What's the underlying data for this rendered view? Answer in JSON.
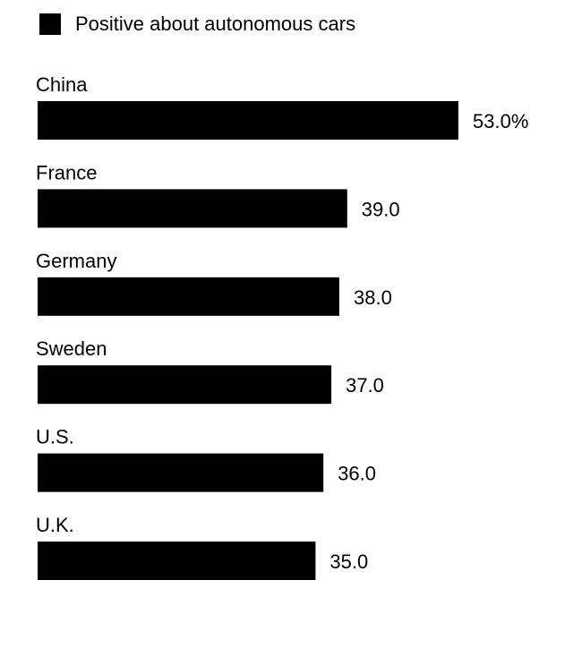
{
  "chart_data": {
    "type": "bar",
    "orientation": "horizontal",
    "categories": [
      "China",
      "France",
      "Germany",
      "Sweden",
      "U.S.",
      "U.K."
    ],
    "series": [
      {
        "name": "Positive about autonomous cars",
        "values": [
          53.0,
          39.0,
          38.0,
          37.0,
          36.0,
          35.0
        ]
      }
    ],
    "value_labels": [
      "53.0%",
      "39.0",
      "38.0",
      "37.0",
      "36.0",
      "35.0"
    ],
    "xlim": [
      0,
      53
    ],
    "grid": false,
    "legend": "top-left"
  },
  "colors": {
    "bar": "#000000",
    "text": "#000000",
    "background": "#ffffff"
  }
}
